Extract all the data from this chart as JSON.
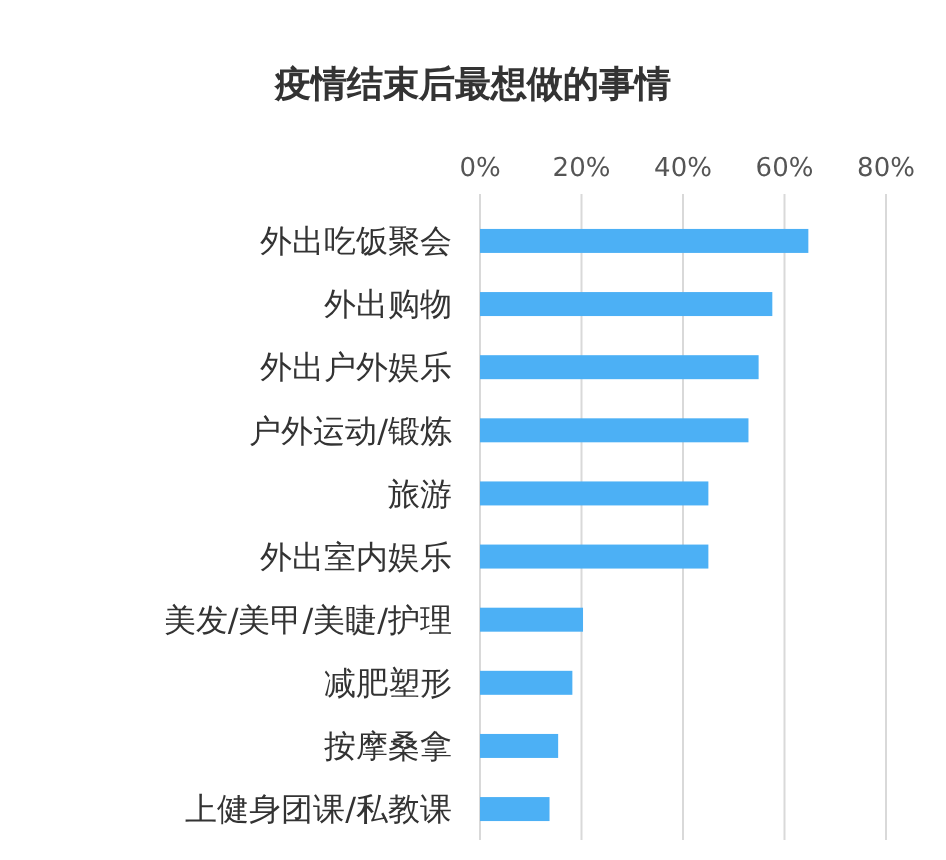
{
  "chart_data": {
    "type": "bar",
    "orientation": "horizontal",
    "title": "疫情结束后最想做的事情",
    "categories": [
      "外出吃饭聚会",
      "外出购物",
      "外出户外娱乐",
      "户外运动/锻炼",
      "旅游",
      "外出室内娱乐",
      "美发/美甲/美睫/护理",
      "减肥塑形",
      "按摩桑拿",
      "上健身团课/私教课"
    ],
    "values": [
      64.7,
      57.6,
      54.9,
      52.9,
      45,
      45,
      20.3,
      18.2,
      15.4,
      13.7
    ],
    "color": "#4cb0f5",
    "xlim": [
      0,
      80
    ],
    "xticks": [
      {
        "value": 0,
        "label": "0%"
      },
      {
        "value": 20,
        "label": "20%"
      },
      {
        "value": 40,
        "label": "40%"
      },
      {
        "value": 60,
        "label": "60%"
      },
      {
        "value": 80,
        "label": "80%"
      }
    ],
    "grid": "x"
  }
}
